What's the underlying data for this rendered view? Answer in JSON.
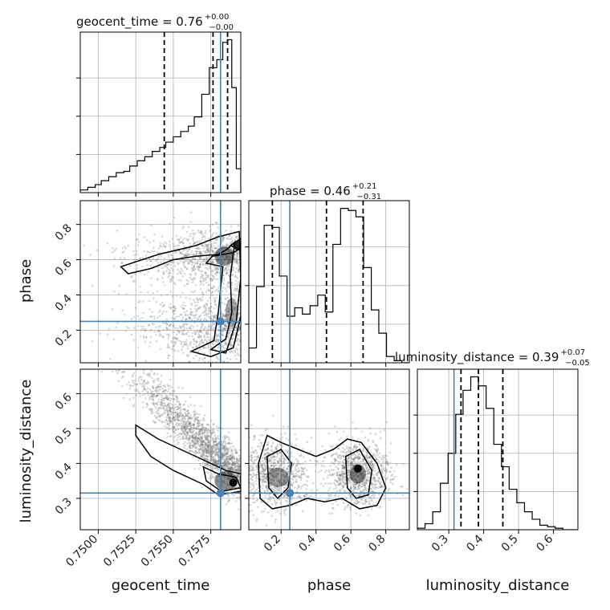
{
  "chart_data": {
    "type": "corner",
    "parameters": [
      "geocent_time",
      "phase",
      "luminosity_distance"
    ],
    "truths": {
      "geocent_time": 0.75815,
      "phase": 0.25,
      "luminosity_distance": 0.315
    },
    "colors": {
      "truth": "#4682b4",
      "hist": "#000000",
      "scatter": "#777777",
      "grid": "#b0b0b0"
    },
    "titles": [
      {
        "param": "geocent_time",
        "label": "geocent_time = 0.76",
        "plus": "+0.00",
        "minus": "−0.00"
      },
      {
        "param": "phase",
        "label": "phase = 0.46",
        "plus": "+0.21",
        "minus": "−0.31"
      },
      {
        "param": "luminosity_distance",
        "label": "luminosity_distance = 0.39",
        "plus": "+0.07",
        "minus": "−0.05"
      }
    ],
    "axes": {
      "geocent_time": {
        "range": [
          0.7488,
          0.7595
        ],
        "ticks": [
          0.75,
          0.7525,
          0.755,
          0.7575
        ],
        "tick_labels": [
          "0.7500",
          "0.7525",
          "0.7550",
          "0.7575"
        ]
      },
      "phase": {
        "range": [
          0.015,
          0.935
        ],
        "ticks": [
          0.2,
          0.4,
          0.6,
          0.8
        ],
        "tick_labels": [
          "0.2",
          "0.4",
          "0.6",
          "0.8"
        ]
      },
      "luminosity_distance": {
        "range": [
          0.21,
          0.67
        ],
        "ticks": [
          0.3,
          0.4,
          0.5,
          0.6
        ],
        "tick_labels": [
          "0.3",
          "0.4",
          "0.5",
          "0.6"
        ]
      }
    },
    "hist1d": {
      "geocent_time": {
        "bin_edges": [
          0.7488,
          0.7493,
          0.7498,
          0.7502,
          0.7507,
          0.7512,
          0.7517,
          0.7521,
          0.7526,
          0.7531,
          0.7536,
          0.7541,
          0.7545,
          0.755,
          0.7555,
          0.756,
          0.7564,
          0.7569,
          0.7574,
          0.7579,
          0.7583,
          0.7586,
          0.7589,
          0.7592,
          0.7595
        ],
        "counts": [
          2,
          4,
          6,
          9,
          12,
          15,
          16,
          20,
          24,
          27,
          31,
          34,
          38,
          42,
          46,
          50,
          57,
          74,
          94,
          100,
          113,
          115,
          79,
          18
        ],
        "quantiles": [
          0.7544,
          0.75765,
          0.75862
        ]
      },
      "phase": {
        "bin_edges": [
          0.015,
          0.059,
          0.103,
          0.147,
          0.19,
          0.234,
          0.278,
          0.322,
          0.366,
          0.41,
          0.453,
          0.497,
          0.541,
          0.585,
          0.629,
          0.673,
          0.717,
          0.76,
          0.804,
          0.848,
          0.892,
          0.935
        ],
        "counts": [
          7,
          36,
          65,
          64,
          41,
          22,
          26,
          23,
          27,
          32,
          24,
          56,
          73,
          72,
          69,
          45,
          25,
          14,
          3,
          1,
          0
        ],
        "quantiles": [
          0.15,
          0.46,
          0.67
        ]
      },
      "luminosity_distance": {
        "bin_edges": [
          0.21,
          0.232,
          0.254,
          0.276,
          0.298,
          0.32,
          0.341,
          0.363,
          0.385,
          0.407,
          0.429,
          0.451,
          0.473,
          0.495,
          0.517,
          0.539,
          0.561,
          0.583,
          0.605,
          0.627,
          0.649,
          0.67
        ],
        "counts": [
          1,
          4,
          12,
          31,
          51,
          77,
          93,
          102,
          96,
          81,
          57,
          42,
          27,
          18,
          12,
          7,
          3,
          2,
          1,
          0,
          0
        ],
        "quantiles": [
          0.335,
          0.385,
          0.455
        ]
      }
    },
    "hist2d": {
      "phase_vs_geocent_time": {
        "x": "geocent_time",
        "y": "phase"
      },
      "luminosity_distance_vs_geocent_time": {
        "x": "geocent_time",
        "y": "luminosity_distance"
      },
      "luminosity_distance_vs_phase": {
        "x": "phase",
        "y": "luminosity_distance"
      }
    }
  }
}
